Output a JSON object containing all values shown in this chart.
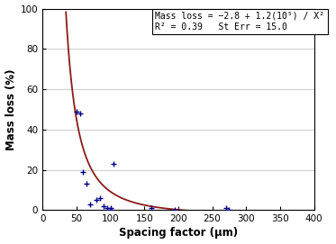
{
  "scatter_x": [
    50,
    55,
    60,
    65,
    70,
    80,
    85,
    90,
    95,
    100,
    100,
    105,
    160,
    195,
    270,
    275
  ],
  "scatter_y": [
    49,
    48,
    19,
    13,
    3,
    5,
    6,
    2,
    1,
    0,
    1,
    23,
    1,
    0,
    1,
    0
  ],
  "scatter_color": "#00008B",
  "curve_color": "#8B1A1A",
  "xlabel": "Spacing factor (μm)",
  "ylabel": "Mass loss (%)",
  "xlim": [
    0,
    400
  ],
  "ylim": [
    0,
    100
  ],
  "xticks": [
    0,
    50,
    100,
    150,
    200,
    250,
    300,
    350,
    400
  ],
  "yticks": [
    0,
    20,
    40,
    60,
    80,
    100
  ],
  "annotation_line1": "Mass loss = −2.8 + 1.2(10⁵) / X²",
  "annotation_line2": "R² = 0.39   St Err = 15.0",
  "a": -2.8,
  "b": 120000,
  "curve_x_start": 34.0,
  "figsize": [
    3.73,
    2.71
  ],
  "dpi": 100
}
